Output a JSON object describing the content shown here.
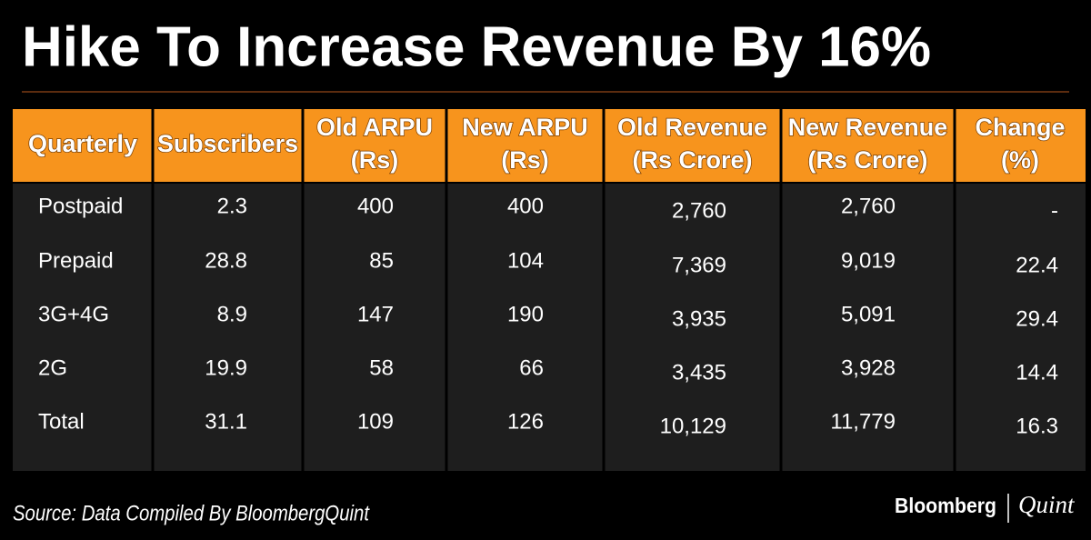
{
  "header": {
    "title": "Hike To Increase Revenue By 16%"
  },
  "table": {
    "columns": [
      [
        "Quarterly"
      ],
      [
        "Subscribers"
      ],
      [
        "Old ARPU",
        "(Rs)"
      ],
      [
        "New ARPU",
        "(Rs)"
      ],
      [
        "Old Revenue",
        "(Rs Crore)"
      ],
      [
        "New Revenue",
        "(Rs Crore)"
      ],
      [
        "Change",
        "(%)"
      ]
    ],
    "rows": [
      [
        "Postpaid",
        "2.3",
        "400",
        "400",
        "2,760",
        "2,760",
        "-"
      ],
      [
        "Prepaid",
        "28.8",
        "85",
        "104",
        "7,369",
        "9,019",
        "22.4"
      ],
      [
        "3G+4G",
        "8.9",
        "147",
        "190",
        "3,935",
        "5,091",
        "29.4"
      ],
      [
        "2G",
        "19.9",
        "58",
        "66",
        "3,435",
        "3,928",
        "14.4"
      ],
      [
        "Total",
        "31.1",
        "109",
        "126",
        "10,129",
        "11,779",
        "16.3"
      ]
    ]
  },
  "footer": {
    "source": "Source: Data Compiled By BloombergQuint",
    "brand": "Bloomberg",
    "brand2": "Quint"
  }
}
